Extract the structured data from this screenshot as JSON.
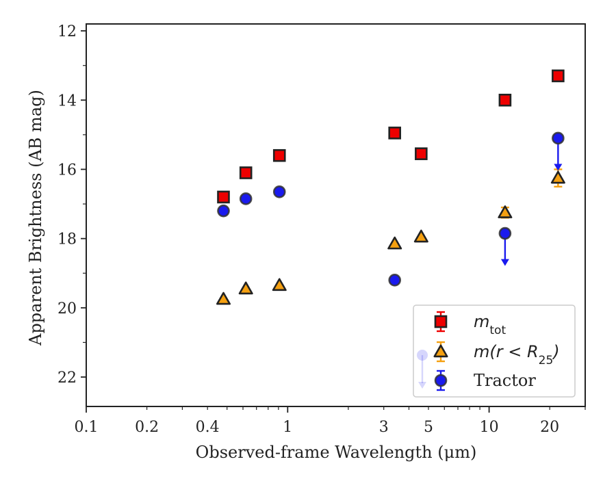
{
  "chart_data": {
    "type": "scatter",
    "xlabel": "Observed-frame Wavelength (μm)",
    "ylabel": "Apparent Brightness (AB mag)",
    "x_scale": "log",
    "xlim": [
      0.1,
      30
    ],
    "ylim": [
      22.85,
      11.8
    ],
    "y_inverted": true,
    "x_ticks": [
      0.1,
      0.2,
      0.4,
      1,
      3,
      5,
      10,
      20
    ],
    "x_tick_labels": [
      "0.1",
      "0.2",
      "0.4",
      "1",
      "3",
      "5",
      "10",
      "20"
    ],
    "y_ticks": [
      12,
      14,
      16,
      18,
      20,
      22
    ],
    "y_tick_labels": [
      "12",
      "14",
      "16",
      "18",
      "20",
      "22"
    ],
    "grid": false,
    "legend_position": "lower-right",
    "series": [
      {
        "name": "m_tot",
        "legend_label": {
          "base": "m",
          "sub": "tot"
        },
        "marker": "square",
        "color": "#ee0000",
        "edgecolor": "#222222",
        "points": [
          {
            "x": 0.48,
            "y": 16.8
          },
          {
            "x": 0.62,
            "y": 16.1
          },
          {
            "x": 0.91,
            "y": 15.6
          },
          {
            "x": 3.4,
            "y": 14.95
          },
          {
            "x": 4.6,
            "y": 15.55
          },
          {
            "x": 12.0,
            "y": 14.0
          },
          {
            "x": 22.0,
            "y": 13.3
          }
        ]
      },
      {
        "name": "m(r < R25)",
        "legend_label": {
          "base": "m(r < R",
          "sub": "25",
          "tail": ")"
        },
        "marker": "triangle",
        "color": "#f5a010",
        "edgecolor": "#222222",
        "points": [
          {
            "x": 0.48,
            "y": 19.75
          },
          {
            "x": 0.62,
            "y": 19.45
          },
          {
            "x": 0.91,
            "y": 19.35
          },
          {
            "x": 3.4,
            "y": 18.15
          },
          {
            "x": 4.6,
            "y": 17.95
          },
          {
            "x": 12.0,
            "y": 17.25,
            "yerr": 0.15
          },
          {
            "x": 22.0,
            "y": 16.25,
            "yerr": 0.25
          }
        ]
      },
      {
        "name": "Tractor",
        "legend_label": {
          "base": "Tractor"
        },
        "marker": "circle",
        "color": "#1a1aee",
        "edgecolor": "#333333",
        "points": [
          {
            "x": 0.48,
            "y": 17.2
          },
          {
            "x": 0.62,
            "y": 16.85
          },
          {
            "x": 0.91,
            "y": 16.65
          },
          {
            "x": 3.4,
            "y": 19.2
          },
          {
            "x": 12.0,
            "y": 17.85,
            "upper_limit_to": 18.75
          },
          {
            "x": 22.0,
            "y": 15.1,
            "upper_limit_to": 16.0
          }
        ]
      }
    ]
  }
}
